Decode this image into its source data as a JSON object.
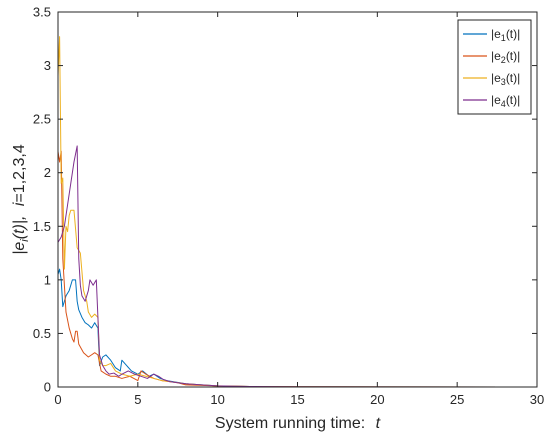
{
  "chart_data": {
    "type": "line",
    "title": "",
    "xlabel": {
      "text": "System running time:",
      "var": "t"
    },
    "ylabel": {
      "pre": "|e",
      "sub": "i",
      "post": "(t)|,",
      "var": "i",
      "rest": "=1,2,3,4"
    },
    "xlim": [
      0,
      30
    ],
    "ylim": [
      0,
      3.5
    ],
    "xticks": [
      0,
      5,
      10,
      15,
      20,
      25,
      30
    ],
    "xtick_labels": [
      "0",
      "5",
      "10",
      "15",
      "20",
      "25",
      "30"
    ],
    "yticks": [
      0,
      0.5,
      1,
      1.5,
      2,
      2.5,
      3,
      3.5
    ],
    "ytick_labels": [
      "0",
      "0.5",
      "1",
      "1.5",
      "2",
      "2.5",
      "3",
      "3.5"
    ],
    "grid": false,
    "legend": "top-right",
    "series": [
      {
        "name": "|e1(t)|",
        "label": {
          "pre": "|e",
          "sub": "1",
          "post": "(t)|"
        },
        "color": "#0072BD",
        "x": [
          0,
          0.1,
          0.2,
          0.3,
          0.5,
          0.7,
          0.9,
          1.1,
          1.2,
          1.3,
          1.5,
          1.7,
          1.9,
          2.1,
          2.3,
          2.5,
          2.6,
          2.8,
          3.0,
          3.3,
          3.6,
          3.9,
          4.0,
          4.3,
          4.6,
          5.0,
          5.3,
          5.7,
          6.0,
          6.4,
          6.8,
          7.2,
          8.0,
          9.0,
          10.0,
          12.0,
          15.0,
          20.0,
          30.0
        ],
        "y": [
          1.05,
          1.1,
          1.0,
          0.75,
          0.85,
          0.9,
          1.0,
          1.0,
          0.8,
          0.72,
          0.65,
          0.6,
          0.58,
          0.55,
          0.6,
          0.55,
          0.2,
          0.28,
          0.3,
          0.25,
          0.18,
          0.15,
          0.25,
          0.2,
          0.15,
          0.12,
          0.15,
          0.1,
          0.12,
          0.08,
          0.06,
          0.05,
          0.03,
          0.02,
          0.01,
          0.005,
          0.002,
          0.001,
          0.0
        ]
      },
      {
        "name": "|e2(t)|",
        "label": {
          "pre": "|e",
          "sub": "2",
          "post": "(t)|"
        },
        "color": "#D95319",
        "x": [
          0,
          0.1,
          0.2,
          0.3,
          0.5,
          0.7,
          0.9,
          1.0,
          1.1,
          1.2,
          1.3,
          1.6,
          1.9,
          2.1,
          2.3,
          2.5,
          2.7,
          3.0,
          3.3,
          3.6,
          4.0,
          4.5,
          5.0,
          5.2,
          5.5,
          6.0,
          6.5,
          7.0,
          7.5,
          8.0,
          9.0,
          10.0,
          12.0,
          15.0,
          20.0,
          30.0
        ],
        "y": [
          2.2,
          2.1,
          2.2,
          1.2,
          0.7,
          0.55,
          0.45,
          0.42,
          0.52,
          0.52,
          0.4,
          0.32,
          0.28,
          0.3,
          0.32,
          0.3,
          0.15,
          0.12,
          0.1,
          0.1,
          0.08,
          0.1,
          0.06,
          0.15,
          0.12,
          0.08,
          0.06,
          0.05,
          0.04,
          0.02,
          0.015,
          0.01,
          0.005,
          0.002,
          0.001,
          0.0
        ]
      },
      {
        "name": "|e3(t)|",
        "label": {
          "pre": "|e",
          "sub": "3",
          "post": "(t)|"
        },
        "color": "#EDB120",
        "x": [
          0,
          0.1,
          0.2,
          0.3,
          0.4,
          0.5,
          0.6,
          0.7,
          0.8,
          1.0,
          1.2,
          1.4,
          1.6,
          1.8,
          1.9,
          2.1,
          2.3,
          2.5,
          2.6,
          2.8,
          3.0,
          3.3,
          3.6,
          4.0,
          4.5,
          5.0,
          5.5,
          6.0,
          6.5,
          7.0,
          8.0,
          9.0,
          10.0,
          12.0,
          15.0,
          20.0,
          30.0
        ],
        "y": [
          2.9,
          3.27,
          1.9,
          1.95,
          1.1,
          1.5,
          1.45,
          1.6,
          1.65,
          1.65,
          1.3,
          1.25,
          0.9,
          0.8,
          0.7,
          0.65,
          0.68,
          0.65,
          0.25,
          0.2,
          0.2,
          0.22,
          0.15,
          0.12,
          0.1,
          0.12,
          0.1,
          0.08,
          0.06,
          0.05,
          0.03,
          0.02,
          0.01,
          0.005,
          0.002,
          0.001,
          0.0
        ]
      },
      {
        "name": "|e4(t)|",
        "label": {
          "pre": "|e",
          "sub": "4",
          "post": "(t)|"
        },
        "color": "#7E2F8E",
        "x": [
          0,
          0.2,
          0.4,
          0.6,
          0.8,
          1.0,
          1.2,
          1.3,
          1.4,
          1.5,
          1.7,
          1.9,
          2.0,
          2.2,
          2.4,
          2.6,
          2.8,
          3.0,
          3.2,
          3.5,
          3.8,
          4.0,
          4.4,
          4.8,
          5.2,
          5.6,
          6.0,
          6.3,
          6.6,
          7.0,
          7.5,
          8.0,
          9.0,
          10.0,
          12.0,
          15.0,
          20.0,
          30.0
        ],
        "y": [
          1.35,
          1.4,
          1.5,
          1.7,
          1.9,
          2.1,
          2.25,
          1.2,
          0.95,
          0.85,
          0.8,
          0.9,
          1.0,
          0.95,
          1.0,
          0.3,
          0.2,
          0.15,
          0.12,
          0.13,
          0.1,
          0.12,
          0.15,
          0.12,
          0.1,
          0.08,
          0.12,
          0.1,
          0.07,
          0.05,
          0.04,
          0.03,
          0.02,
          0.01,
          0.005,
          0.002,
          0.001,
          0.0
        ]
      }
    ]
  }
}
